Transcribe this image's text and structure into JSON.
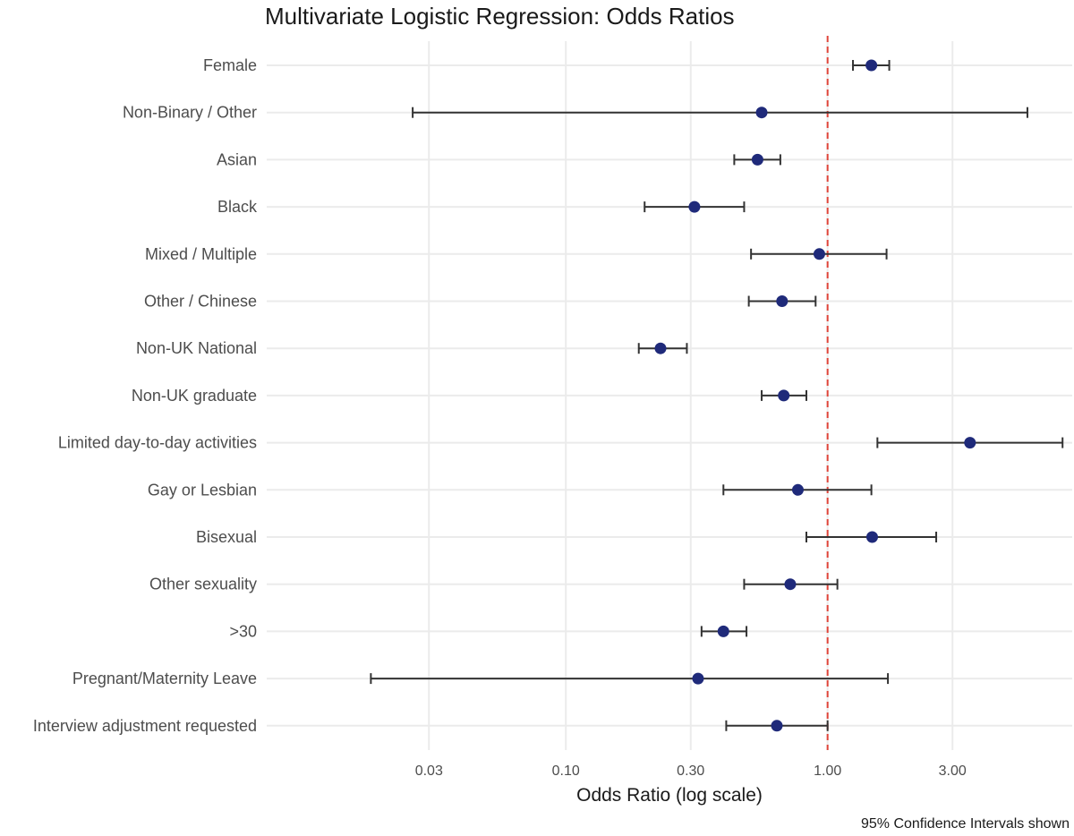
{
  "chart_data": {
    "type": "forest",
    "title": "Multivariate Logistic Regression: Odds Ratios",
    "xlabel": "Odds Ratio (log scale)",
    "caption": "95% Confidence Intervals shown",
    "x_scale": "log",
    "xlim": [
      0.0072,
      8.6
    ],
    "x_ticks": [
      0.03,
      0.1,
      0.3,
      1.0,
      3.0
    ],
    "x_tick_labels": [
      "0.03",
      "0.10",
      "0.30",
      "1.00",
      "3.00"
    ],
    "reference_line": 1.0,
    "colors": {
      "point": "#1f2a7a",
      "ci": "#333333",
      "reference": "#e0453a",
      "grid": "#ebebeb",
      "text": "#4d4d4d"
    },
    "rows": [
      {
        "label": "Female",
        "or": 1.47,
        "lower": 1.25,
        "upper": 1.72
      },
      {
        "label": "Non-Binary / Other",
        "or": 0.56,
        "lower": 0.026,
        "upper": 5.8
      },
      {
        "label": "Asian",
        "or": 0.54,
        "lower": 0.44,
        "upper": 0.66
      },
      {
        "label": "Black",
        "or": 0.31,
        "lower": 0.2,
        "upper": 0.48
      },
      {
        "label": "Mixed / Multiple",
        "or": 0.93,
        "lower": 0.51,
        "upper": 1.68
      },
      {
        "label": "Other / Chinese",
        "or": 0.67,
        "lower": 0.5,
        "upper": 0.9
      },
      {
        "label": "Non-UK National",
        "or": 0.23,
        "lower": 0.19,
        "upper": 0.29
      },
      {
        "label": "Non-UK graduate",
        "or": 0.68,
        "lower": 0.56,
        "upper": 0.83
      },
      {
        "label": "Limited day-to-day activities",
        "or": 3.5,
        "lower": 1.55,
        "upper": 7.9
      },
      {
        "label": "Gay or Lesbian",
        "or": 0.77,
        "lower": 0.4,
        "upper": 1.47
      },
      {
        "label": "Bisexual",
        "or": 1.48,
        "lower": 0.83,
        "upper": 2.6
      },
      {
        "label": "Other sexuality",
        "or": 0.72,
        "lower": 0.48,
        "upper": 1.09
      },
      {
        "label": ">30",
        "or": 0.4,
        "lower": 0.33,
        "upper": 0.49
      },
      {
        "label": "Pregnant/Maternity Leave",
        "or": 0.32,
        "lower": 0.018,
        "upper": 1.7
      },
      {
        "label": "Interview adjustment requested",
        "or": 0.64,
        "lower": 0.41,
        "upper": 1.0
      }
    ]
  }
}
